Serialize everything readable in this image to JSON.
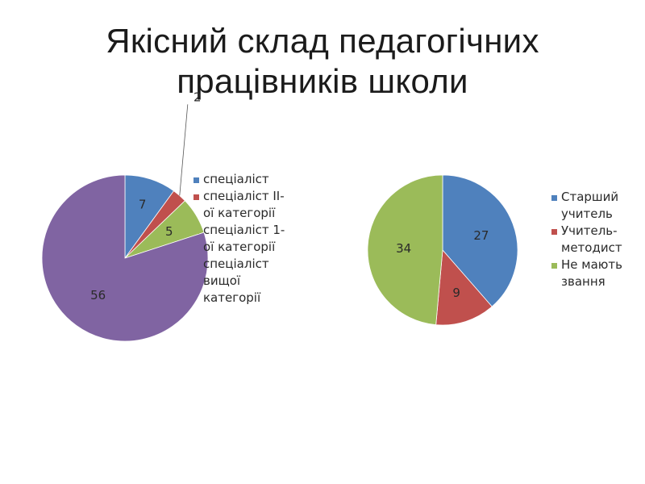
{
  "title": {
    "line1": "Якісний склад педагогічних",
    "line2": "працівників школи"
  },
  "chart_data": [
    {
      "type": "pie",
      "categories": [
        "спеціаліст",
        "спеціаліст ІІ-ої категорії",
        "спеціаліст 1-ої категорії",
        "спеціаліст вищої категорії"
      ],
      "values": [
        7,
        2,
        5,
        56
      ],
      "colors": [
        "#4f81bd",
        "#c0504d",
        "#9bbb59",
        "#8064a2"
      ],
      "data_labels": [
        "7",
        "2",
        "5",
        "56"
      ],
      "legend_position": "right",
      "legend": [
        {
          "lines": [
            "спеціаліст"
          ],
          "color": "#4f81bd"
        },
        {
          "lines": [
            "спеціаліст ІІ-",
            "ої категорії"
          ],
          "color": "#c0504d"
        },
        {
          "lines": [
            "спеціаліст 1-",
            "ої категорії"
          ],
          "color": "#9bbb59"
        },
        {
          "lines": [
            "спеціаліст",
            "вищої",
            "категорії"
          ],
          "color": "#8064a2"
        }
      ]
    },
    {
      "type": "pie",
      "categories": [
        "Старший учитель",
        "Учитель-методист",
        "Не мають звання"
      ],
      "values": [
        27,
        9,
        34
      ],
      "colors": [
        "#4f81bd",
        "#c0504d",
        "#9bbb59"
      ],
      "data_labels": [
        "27",
        "9",
        "34"
      ],
      "legend_position": "right",
      "legend": [
        {
          "lines": [
            "Старший",
            "учитель"
          ],
          "color": "#4f81bd"
        },
        {
          "lines": [
            "Учитель-",
            "методист"
          ],
          "color": "#c0504d"
        },
        {
          "lines": [
            "Не мають",
            "звання"
          ],
          "color": "#9bbb59"
        }
      ]
    }
  ]
}
